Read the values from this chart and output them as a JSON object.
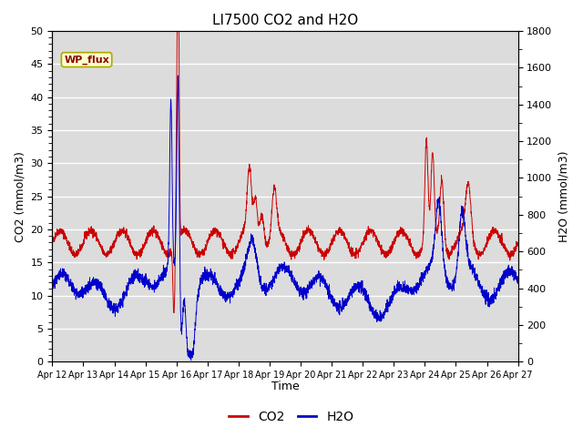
{
  "title": "LI7500 CO2 and H2O",
  "xlabel": "Time",
  "ylabel_left": "CO2 (mmol/m3)",
  "ylabel_right": "H2O (mmol/m3)",
  "ylim_left": [
    0,
    50
  ],
  "ylim_right": [
    0,
    1800
  ],
  "annotation_text": "WP_flux",
  "bg_color": "#dcdcdc",
  "fig_color": "#ffffff",
  "co2_color": "#cc0000",
  "h2o_color": "#0000cc",
  "legend_co2": "CO2",
  "legend_h2o": "H2O",
  "x_ticks": [
    "Apr 12",
    "Apr 13",
    "Apr 14",
    "Apr 15",
    "Apr 16",
    "Apr 17",
    "Apr 18",
    "Apr 19",
    "Apr 20",
    "Apr 21",
    "Apr 22",
    "Apr 23",
    "Apr 24",
    "Apr 25",
    "Apr 26",
    "Apr 27"
  ],
  "n_points": 3000,
  "seed": 42
}
